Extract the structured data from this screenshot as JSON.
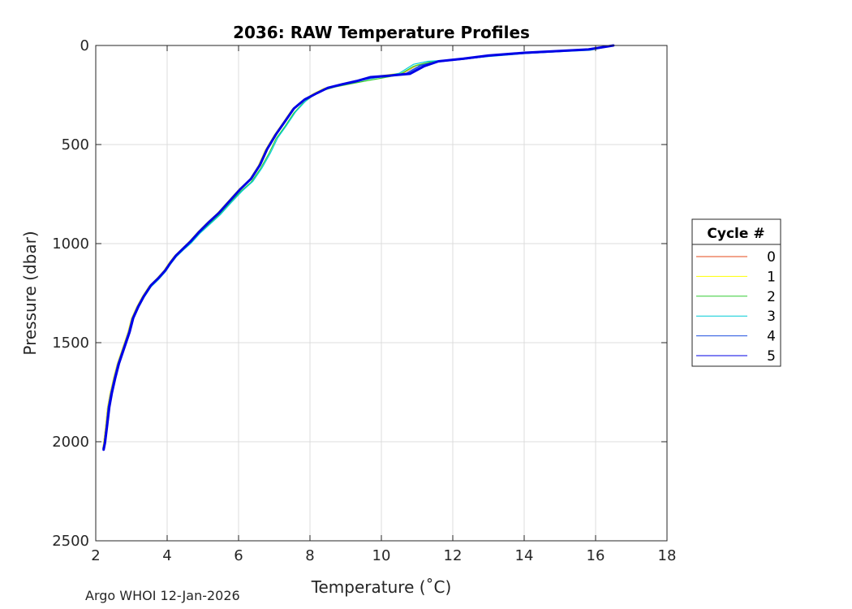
{
  "chart_data": {
    "type": "line",
    "title": "2036: RAW Temperature Profiles",
    "xlabel": "Temperature (˚C)",
    "ylabel": "Pressure (dbar)",
    "xlim": [
      2,
      18
    ],
    "ylim": [
      0,
      2500
    ],
    "y_reversed": true,
    "grid": true,
    "x_ticks": [
      2,
      4,
      6,
      8,
      10,
      12,
      14,
      16,
      18
    ],
    "y_ticks": [
      0,
      500,
      1000,
      1500,
      2000,
      2500
    ],
    "legend": {
      "title": "Cycle #",
      "placement": "outside-right"
    },
    "series": [
      {
        "name": "0",
        "color": "#e64a19",
        "points": [
          [
            16.4,
            0
          ],
          [
            15.8,
            20
          ],
          [
            15.0,
            28
          ],
          [
            14.0,
            38
          ],
          [
            13.0,
            52
          ],
          [
            12.3,
            68
          ],
          [
            11.5,
            80
          ],
          [
            11.0,
            100
          ],
          [
            10.6,
            140
          ],
          [
            10.0,
            155
          ],
          [
            9.6,
            165
          ],
          [
            9.2,
            185
          ],
          [
            8.8,
            200
          ],
          [
            8.4,
            218
          ],
          [
            8.1,
            245
          ],
          [
            7.8,
            278
          ],
          [
            7.5,
            325
          ],
          [
            7.25,
            390
          ],
          [
            7.0,
            455
          ],
          [
            6.75,
            530
          ],
          [
            6.55,
            610
          ],
          [
            6.3,
            680
          ],
          [
            6.0,
            730
          ],
          [
            5.7,
            790
          ],
          [
            5.4,
            850
          ],
          [
            5.1,
            900
          ],
          [
            4.85,
            945
          ],
          [
            4.6,
            995
          ],
          [
            4.4,
            1030
          ],
          [
            4.2,
            1065
          ],
          [
            4.05,
            1100
          ],
          [
            3.9,
            1140
          ],
          [
            3.7,
            1180
          ],
          [
            3.5,
            1215
          ],
          [
            3.3,
            1270
          ],
          [
            3.15,
            1320
          ],
          [
            3.0,
            1380
          ],
          [
            2.9,
            1450
          ],
          [
            2.75,
            1530
          ],
          [
            2.6,
            1610
          ],
          [
            2.5,
            1680
          ],
          [
            2.4,
            1760
          ],
          [
            2.33,
            1830
          ],
          [
            2.28,
            1920
          ],
          [
            2.22,
            2010
          ],
          [
            2.2,
            2035
          ]
        ]
      },
      {
        "name": "1",
        "color": "#ffff00",
        "points": [
          [
            16.5,
            0
          ],
          [
            15.9,
            18
          ],
          [
            15.0,
            27
          ],
          [
            14.0,
            37
          ],
          [
            13.0,
            51
          ],
          [
            12.3,
            67
          ],
          [
            11.5,
            79
          ],
          [
            11.0,
            98
          ],
          [
            10.6,
            138
          ],
          [
            10.0,
            152
          ],
          [
            9.6,
            163
          ],
          [
            9.2,
            183
          ],
          [
            8.8,
            198
          ],
          [
            8.4,
            216
          ],
          [
            8.1,
            243
          ],
          [
            7.8,
            276
          ],
          [
            7.5,
            322
          ],
          [
            7.25,
            388
          ],
          [
            7.0,
            452
          ],
          [
            6.75,
            528
          ],
          [
            6.55,
            608
          ],
          [
            6.3,
            678
          ],
          [
            6.0,
            728
          ],
          [
            5.7,
            788
          ],
          [
            5.4,
            848
          ],
          [
            5.1,
            898
          ],
          [
            4.85,
            943
          ],
          [
            4.6,
            993
          ],
          [
            4.4,
            1028
          ],
          [
            4.2,
            1063
          ],
          [
            4.05,
            1098
          ],
          [
            3.9,
            1138
          ],
          [
            3.7,
            1178
          ],
          [
            3.5,
            1213
          ],
          [
            3.3,
            1268
          ],
          [
            3.15,
            1318
          ],
          [
            3.0,
            1378
          ],
          [
            2.9,
            1448
          ],
          [
            2.75,
            1528
          ],
          [
            2.6,
            1608
          ],
          [
            2.5,
            1678
          ],
          [
            2.4,
            1758
          ],
          [
            2.33,
            1828
          ],
          [
            2.28,
            1918
          ],
          [
            2.22,
            2008
          ],
          [
            2.2,
            2032
          ]
        ]
      },
      {
        "name": "2",
        "color": "#33cc33",
        "points": [
          [
            16.5,
            0
          ],
          [
            15.9,
            22
          ],
          [
            15.0,
            30
          ],
          [
            14.0,
            40
          ],
          [
            13.0,
            55
          ],
          [
            12.2,
            70
          ],
          [
            11.4,
            82
          ],
          [
            10.9,
            105
          ],
          [
            10.5,
            148
          ],
          [
            10.0,
            165
          ],
          [
            9.6,
            178
          ],
          [
            9.1,
            195
          ],
          [
            8.7,
            210
          ],
          [
            8.35,
            228
          ],
          [
            8.05,
            258
          ],
          [
            7.8,
            292
          ],
          [
            7.55,
            340
          ],
          [
            7.3,
            408
          ],
          [
            7.05,
            470
          ],
          [
            6.85,
            545
          ],
          [
            6.6,
            625
          ],
          [
            6.35,
            690
          ],
          [
            6.05,
            738
          ],
          [
            5.75,
            795
          ],
          [
            5.45,
            855
          ],
          [
            5.15,
            905
          ],
          [
            4.9,
            950
          ],
          [
            4.65,
            1000
          ],
          [
            4.42,
            1035
          ],
          [
            4.22,
            1070
          ],
          [
            4.07,
            1105
          ],
          [
            3.92,
            1145
          ],
          [
            3.72,
            1185
          ],
          [
            3.52,
            1220
          ],
          [
            3.32,
            1275
          ],
          [
            3.17,
            1325
          ],
          [
            3.02,
            1385
          ],
          [
            2.92,
            1455
          ],
          [
            2.77,
            1535
          ],
          [
            2.62,
            1615
          ],
          [
            2.52,
            1685
          ],
          [
            2.42,
            1765
          ],
          [
            2.35,
            1835
          ],
          [
            2.29,
            1925
          ],
          [
            2.23,
            2012
          ],
          [
            2.21,
            2030
          ]
        ]
      },
      {
        "name": "3",
        "color": "#00ccd6",
        "points": [
          [
            16.45,
            0
          ],
          [
            15.85,
            24
          ],
          [
            15.0,
            31
          ],
          [
            14.0,
            41
          ],
          [
            13.0,
            56
          ],
          [
            12.2,
            70
          ],
          [
            11.3,
            80
          ],
          [
            10.9,
            95
          ],
          [
            10.5,
            140
          ],
          [
            10.0,
            158
          ],
          [
            9.55,
            172
          ],
          [
            9.1,
            190
          ],
          [
            8.7,
            205
          ],
          [
            8.35,
            223
          ],
          [
            8.05,
            252
          ],
          [
            7.85,
            286
          ],
          [
            7.6,
            335
          ],
          [
            7.35,
            402
          ],
          [
            7.1,
            465
          ],
          [
            6.9,
            540
          ],
          [
            6.65,
            620
          ],
          [
            6.4,
            686
          ],
          [
            6.1,
            735
          ],
          [
            5.8,
            792
          ],
          [
            5.5,
            852
          ],
          [
            5.2,
            902
          ],
          [
            4.92,
            948
          ],
          [
            4.67,
            998
          ],
          [
            4.45,
            1033
          ],
          [
            4.25,
            1068
          ],
          [
            4.1,
            1103
          ],
          [
            3.95,
            1143
          ],
          [
            3.75,
            1183
          ],
          [
            3.55,
            1218
          ],
          [
            3.35,
            1273
          ],
          [
            3.2,
            1323
          ],
          [
            3.05,
            1383
          ],
          [
            2.95,
            1453
          ],
          [
            2.8,
            1533
          ],
          [
            2.65,
            1613
          ],
          [
            2.55,
            1683
          ],
          [
            2.45,
            1763
          ],
          [
            2.37,
            1833
          ],
          [
            2.31,
            1923
          ],
          [
            2.24,
            2010
          ],
          [
            2.22,
            2028
          ]
        ]
      },
      {
        "name": "4",
        "color": "#1f4fe0",
        "points": [
          [
            16.5,
            0
          ],
          [
            15.8,
            19
          ],
          [
            15.0,
            29
          ],
          [
            14.0,
            39
          ],
          [
            13.0,
            53
          ],
          [
            12.3,
            69
          ],
          [
            11.6,
            81
          ],
          [
            11.1,
            101
          ],
          [
            10.7,
            142
          ],
          [
            10.1,
            156
          ],
          [
            9.65,
            164
          ],
          [
            9.25,
            184
          ],
          [
            8.85,
            199
          ],
          [
            8.45,
            217
          ],
          [
            8.15,
            244
          ],
          [
            7.82,
            277
          ],
          [
            7.52,
            323
          ],
          [
            7.27,
            389
          ],
          [
            7.02,
            453
          ],
          [
            6.77,
            529
          ],
          [
            6.57,
            609
          ],
          [
            6.32,
            679
          ],
          [
            6.02,
            729
          ],
          [
            5.72,
            789
          ],
          [
            5.42,
            849
          ],
          [
            5.12,
            899
          ],
          [
            4.87,
            944
          ],
          [
            4.62,
            994
          ],
          [
            4.42,
            1029
          ],
          [
            4.22,
            1064
          ],
          [
            4.07,
            1099
          ],
          [
            3.92,
            1139
          ],
          [
            3.72,
            1179
          ],
          [
            3.52,
            1214
          ],
          [
            3.32,
            1269
          ],
          [
            3.17,
            1319
          ],
          [
            3.02,
            1379
          ],
          [
            2.92,
            1449
          ],
          [
            2.77,
            1529
          ],
          [
            2.62,
            1609
          ],
          [
            2.52,
            1679
          ],
          [
            2.42,
            1759
          ],
          [
            2.35,
            1829
          ],
          [
            2.3,
            1919
          ],
          [
            2.24,
            2009
          ],
          [
            2.21,
            2034
          ]
        ]
      },
      {
        "name": "5",
        "color": "#0000e6",
        "points": [
          [
            16.5,
            0
          ],
          [
            15.8,
            20
          ],
          [
            15.0,
            28
          ],
          [
            14.0,
            37
          ],
          [
            13.0,
            51
          ],
          [
            12.3,
            67
          ],
          [
            11.6,
            80
          ],
          [
            11.2,
            104
          ],
          [
            10.8,
            143
          ],
          [
            10.1,
            154
          ],
          [
            9.7,
            160
          ],
          [
            9.3,
            180
          ],
          [
            8.9,
            196
          ],
          [
            8.5,
            214
          ],
          [
            8.2,
            240
          ],
          [
            7.85,
            273
          ],
          [
            7.55,
            318
          ],
          [
            7.3,
            383
          ],
          [
            7.05,
            448
          ],
          [
            6.8,
            523
          ],
          [
            6.6,
            603
          ],
          [
            6.35,
            673
          ],
          [
            6.05,
            725
          ],
          [
            5.75,
            785
          ],
          [
            5.45,
            845
          ],
          [
            5.15,
            895
          ],
          [
            4.9,
            940
          ],
          [
            4.65,
            990
          ],
          [
            4.45,
            1025
          ],
          [
            4.25,
            1060
          ],
          [
            4.1,
            1095
          ],
          [
            3.95,
            1135
          ],
          [
            3.75,
            1175
          ],
          [
            3.55,
            1210
          ],
          [
            3.35,
            1265
          ],
          [
            3.2,
            1315
          ],
          [
            3.05,
            1375
          ],
          [
            2.95,
            1445
          ],
          [
            2.8,
            1525
          ],
          [
            2.65,
            1605
          ],
          [
            2.55,
            1675
          ],
          [
            2.45,
            1755
          ],
          [
            2.38,
            1825
          ],
          [
            2.32,
            1915
          ],
          [
            2.26,
            2005
          ],
          [
            2.22,
            2040
          ]
        ]
      }
    ]
  },
  "footer": {
    "credit": "Argo WHOI 12-Jan-2026"
  }
}
